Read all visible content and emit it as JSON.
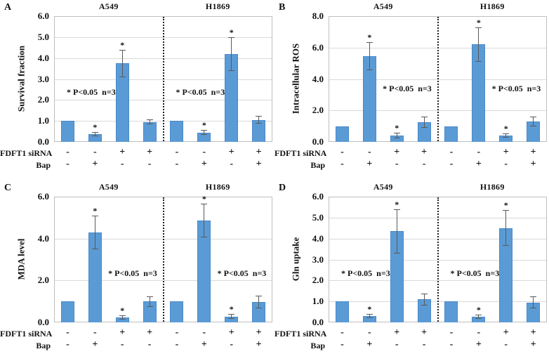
{
  "figure": {
    "background": "#ffffff",
    "bar_color": "#5B9BD5",
    "bar_border_color": "#4A89C8",
    "grid_color": "#D9D9D9",
    "plot_border_color": "#BFBFBF",
    "error_bar_color": "#595959",
    "divider_color": "#1f1f1f",
    "text_color": "#111111",
    "sig_symbol": "*",
    "row_labels": [
      "FDFT1 siRNA",
      "Bap"
    ]
  },
  "chart_data": [
    {
      "type": "bar",
      "panel": "A",
      "ylabel": "Survival fraction",
      "ylim": [
        0,
        6
      ],
      "yticks": [
        0,
        1,
        2,
        3,
        4,
        5,
        6
      ],
      "ytick_labels": [
        "0.0",
        "1.0",
        "2.0",
        "3.0",
        "4.0",
        "5.0",
        "6.0"
      ],
      "grid": true,
      "note": {
        "text": "* P<0.05  n=3",
        "y_value": 2.35
      },
      "groups": [
        {
          "title": "A549",
          "note_align": "left",
          "bars": [
            {
              "FDFT1_siRNA": "-",
              "Bap": "-",
              "value": 1.0,
              "error": 0,
              "significant": false
            },
            {
              "FDFT1_siRNA": "-",
              "Bap": "+",
              "value": 0.38,
              "error": 0.1,
              "significant": true
            },
            {
              "FDFT1_siRNA": "+",
              "Bap": "-",
              "value": 3.75,
              "error": 0.65,
              "significant": true
            },
            {
              "FDFT1_siRNA": "+",
              "Bap": "-",
              "value": 0.95,
              "error": 0.12,
              "significant": false
            }
          ]
        },
        {
          "title": "H1869",
          "note_align": "left",
          "bars": [
            {
              "FDFT1_siRNA": "-",
              "Bap": "-",
              "value": 1.0,
              "error": 0,
              "significant": false
            },
            {
              "FDFT1_siRNA": "-",
              "Bap": "+",
              "value": 0.45,
              "error": 0.13,
              "significant": true
            },
            {
              "FDFT1_siRNA": "+",
              "Bap": "-",
              "value": 4.2,
              "error": 0.8,
              "significant": true
            },
            {
              "FDFT1_siRNA": "+",
              "Bap": "+",
              "value": 1.05,
              "error": 0.18,
              "significant": false
            }
          ]
        }
      ]
    },
    {
      "type": "bar",
      "panel": "B",
      "ylabel": "Intracellular ROS",
      "ylim": [
        0,
        8
      ],
      "yticks": [
        0,
        2,
        4,
        6,
        8
      ],
      "ytick_labels": [
        "0.0",
        "2.0",
        "4.0",
        "6.0",
        "8.0"
      ],
      "grid": true,
      "note": {
        "text": "* P<0.05  n=3",
        "y_value": 3.35
      },
      "groups": [
        {
          "title": "A549",
          "note_align": "right",
          "bars": [
            {
              "FDFT1_siRNA": "-",
              "Bap": "-",
              "value": 1.0,
              "error": 0,
              "significant": false
            },
            {
              "FDFT1_siRNA": "-",
              "Bap": "+",
              "value": 5.45,
              "error": 0.9,
              "significant": true
            },
            {
              "FDFT1_siRNA": "+",
              "Bap": "-",
              "value": 0.4,
              "error": 0.18,
              "significant": true
            },
            {
              "FDFT1_siRNA": "+",
              "Bap": "-",
              "value": 1.25,
              "error": 0.35,
              "significant": false
            }
          ]
        },
        {
          "title": "H1869",
          "note_align": "right",
          "bars": [
            {
              "FDFT1_siRNA": "-",
              "Bap": "-",
              "value": 1.0,
              "error": 0,
              "significant": false
            },
            {
              "FDFT1_siRNA": "-",
              "Bap": "+",
              "value": 6.2,
              "error": 1.1,
              "significant": true
            },
            {
              "FDFT1_siRNA": "+",
              "Bap": "-",
              "value": 0.4,
              "error": 0.15,
              "significant": true
            },
            {
              "FDFT1_siRNA": "+",
              "Bap": "+",
              "value": 1.3,
              "error": 0.3,
              "significant": false
            }
          ]
        }
      ]
    },
    {
      "type": "bar",
      "panel": "C",
      "ylabel": "MDA level",
      "ylim": [
        0,
        6
      ],
      "yticks": [
        0,
        2,
        4,
        6
      ],
      "ytick_labels": [
        "0.0",
        "2.0",
        "4.0",
        "6.0"
      ],
      "grid": true,
      "note": {
        "text": "* P<0.05  n=3",
        "y_value": 2.3
      },
      "groups": [
        {
          "title": "A549",
          "note_align": "right",
          "bars": [
            {
              "FDFT1_siRNA": "-",
              "Bap": "-",
              "value": 1.0,
              "error": 0,
              "significant": false
            },
            {
              "FDFT1_siRNA": "-",
              "Bap": "+",
              "value": 4.3,
              "error": 0.8,
              "significant": true
            },
            {
              "FDFT1_siRNA": "+",
              "Bap": "-",
              "value": 0.22,
              "error": 0.1,
              "significant": true
            },
            {
              "FDFT1_siRNA": "+",
              "Bap": "-",
              "value": 1.0,
              "error": 0.25,
              "significant": false
            }
          ]
        },
        {
          "title": "H1869",
          "note_align": "right",
          "bars": [
            {
              "FDFT1_siRNA": "-",
              "Bap": "-",
              "value": 1.0,
              "error": 0,
              "significant": false
            },
            {
              "FDFT1_siRNA": "-",
              "Bap": "+",
              "value": 4.85,
              "error": 0.8,
              "significant": true
            },
            {
              "FDFT1_siRNA": "+",
              "Bap": "-",
              "value": 0.28,
              "error": 0.12,
              "significant": true
            },
            {
              "FDFT1_siRNA": "+",
              "Bap": "+",
              "value": 0.97,
              "error": 0.3,
              "significant": false
            }
          ]
        }
      ]
    },
    {
      "type": "bar",
      "panel": "D",
      "ylabel": "Gln uptake",
      "ylim": [
        0,
        6
      ],
      "yticks": [
        0,
        1,
        2,
        3,
        4,
        5,
        6
      ],
      "ytick_labels": [
        "0.0",
        "1.0",
        "2.0",
        "3.0",
        "4.0",
        "5.0",
        "6.0"
      ],
      "grid": true,
      "note": {
        "text": "* P<0.05  n=3",
        "y_value": 2.3
      },
      "groups": [
        {
          "title": "A549",
          "note_align": "left",
          "bars": [
            {
              "FDFT1_siRNA": "-",
              "Bap": "-",
              "value": 1.0,
              "error": 0,
              "significant": false
            },
            {
              "FDFT1_siRNA": "-",
              "Bap": "+",
              "value": 0.3,
              "error": 0.1,
              "significant": true
            },
            {
              "FDFT1_siRNA": "+",
              "Bap": "-",
              "value": 4.35,
              "error": 1.05,
              "significant": true
            },
            {
              "FDFT1_siRNA": "+",
              "Bap": "-",
              "value": 1.1,
              "error": 0.28,
              "significant": false
            }
          ]
        },
        {
          "title": "H1869",
          "note_align": "left",
          "bars": [
            {
              "FDFT1_siRNA": "-",
              "Bap": "-",
              "value": 1.0,
              "error": 0,
              "significant": false
            },
            {
              "FDFT1_siRNA": "-",
              "Bap": "+",
              "value": 0.27,
              "error": 0.1,
              "significant": true
            },
            {
              "FDFT1_siRNA": "+",
              "Bap": "-",
              "value": 4.5,
              "error": 0.85,
              "significant": true
            },
            {
              "FDFT1_siRNA": "+",
              "Bap": "+",
              "value": 0.95,
              "error": 0.28,
              "significant": false
            }
          ]
        }
      ]
    }
  ]
}
